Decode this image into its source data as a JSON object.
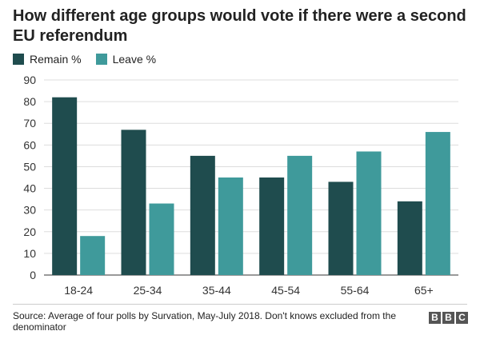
{
  "header": {
    "title": "How different age groups would vote if there were a second EU referendum"
  },
  "legend": [
    {
      "label": "Remain %",
      "color": "#1f4c4e"
    },
    {
      "label": "Leave %",
      "color": "#3f9a9b"
    }
  ],
  "footer": {
    "source": "Source: Average of four polls by Survation, May-July 2018. Don't knows excluded from the denominator",
    "logo_letters": [
      "B",
      "B",
      "C"
    ]
  },
  "chart_data": {
    "type": "bar",
    "categories": [
      "18-24",
      "25-34",
      "35-44",
      "45-54",
      "55-64",
      "65+"
    ],
    "series": [
      {
        "name": "Remain %",
        "color": "#1f4c4e",
        "values": [
          82,
          67,
          55,
          45,
          43,
          34
        ]
      },
      {
        "name": "Leave %",
        "color": "#3f9a9b",
        "values": [
          18,
          33,
          45,
          55,
          57,
          66
        ]
      }
    ],
    "ylim": [
      0,
      90
    ],
    "yticks": [
      0,
      10,
      20,
      30,
      40,
      50,
      60,
      70,
      80,
      90
    ],
    "grid": true,
    "legend_position": "top-left"
  }
}
